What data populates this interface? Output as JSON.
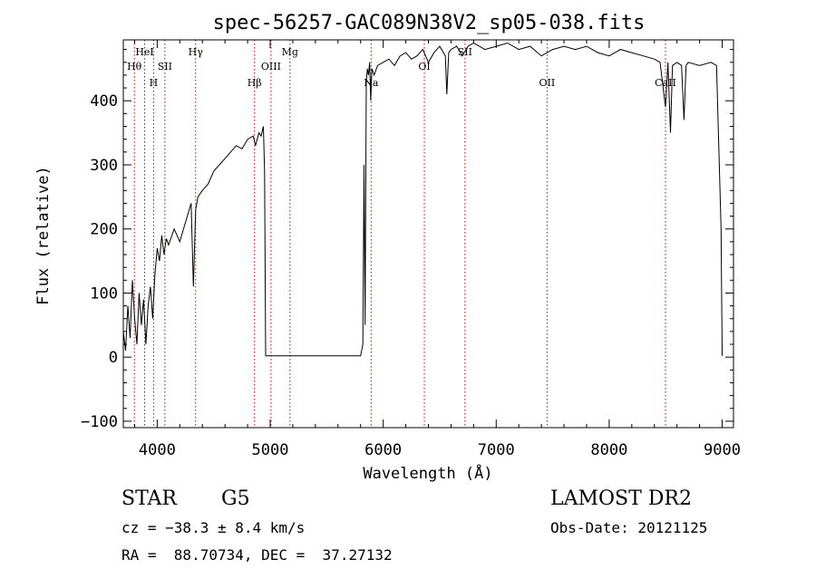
{
  "chart_data": {
    "type": "line",
    "title": "spec-56257-GAC089N38V2_sp05-038.fits",
    "xlabel": "Wavelength (Å)",
    "ylabel": "Flux (relative)",
    "xlim": [
      3700,
      9100
    ],
    "ylim": [
      -110,
      495
    ],
    "xticks": [
      4000,
      5000,
      6000,
      7000,
      8000,
      9000
    ],
    "xtick_labels": [
      "4000",
      "5000",
      "6000",
      "7000",
      "8000",
      "9000"
    ],
    "yticks": [
      -100,
      0,
      100,
      200,
      300,
      400
    ],
    "ytick_labels": [
      "−100",
      "0",
      "100",
      "200",
      "300",
      "400"
    ],
    "grid": false,
    "colors": {
      "line": "#000000",
      "marker": "#cc0000"
    },
    "series": [
      {
        "x": [
          3700,
          3720,
          3740,
          3760,
          3780,
          3800,
          3820,
          3840,
          3860,
          3880,
          3900,
          3920,
          3940,
          3960,
          3980,
          4000,
          4020,
          4040,
          4060,
          4080,
          4100,
          4150,
          4200,
          4250,
          4300,
          4320,
          4340,
          4360,
          4400,
          4450,
          4500,
          4550,
          4600,
          4650,
          4700,
          4750,
          4800,
          4850,
          4870,
          4900,
          4920,
          4940,
          4950,
          4960,
          4980,
          5000,
          5400,
          5800,
          5820,
          5830,
          5840,
          5850,
          5860,
          5870,
          5880,
          5890,
          5900,
          5920,
          5950,
          6000,
          6050,
          6100,
          6150,
          6200,
          6250,
          6300,
          6350,
          6400,
          6450,
          6500,
          6550,
          6563,
          6580,
          6600,
          6650,
          6700,
          6750,
          6800,
          6900,
          7000,
          7100,
          7200,
          7300,
          7400,
          7500,
          7600,
          7700,
          7800,
          7900,
          8000,
          8100,
          8200,
          8300,
          8400,
          8450,
          8498,
          8520,
          8542,
          8560,
          8600,
          8640,
          8662,
          8680,
          8700,
          8800,
          8900,
          8950,
          8990,
          9000
        ],
        "y": [
          40,
          10,
          80,
          30,
          120,
          60,
          20,
          100,
          50,
          90,
          20,
          80,
          110,
          60,
          130,
          170,
          150,
          190,
          160,
          185,
          175,
          200,
          180,
          210,
          240,
          110,
          230,
          250,
          260,
          270,
          290,
          300,
          310,
          320,
          330,
          325,
          340,
          345,
          330,
          350,
          345,
          360,
          290,
          2,
          2,
          2,
          2,
          2,
          20,
          300,
          50,
          430,
          450,
          440,
          460,
          400,
          450,
          440,
          455,
          460,
          465,
          455,
          470,
          475,
          465,
          470,
          480,
          460,
          475,
          485,
          470,
          410,
          475,
          480,
          485,
          470,
          485,
          490,
          480,
          485,
          490,
          480,
          485,
          470,
          480,
          485,
          480,
          485,
          475,
          470,
          480,
          475,
          470,
          465,
          460,
          390,
          460,
          350,
          455,
          460,
          455,
          370,
          455,
          460,
          455,
          460,
          455,
          200,
          2
        ]
      }
    ],
    "line_markers": [
      {
        "label": "Hθ",
        "x": 3798,
        "row": 1
      },
      {
        "label": "HeI",
        "x": 3889,
        "row": 0
      },
      {
        "label": "H",
        "x": 3968,
        "row": 2
      },
      {
        "label": "SII",
        "x": 4068,
        "row": 1
      },
      {
        "label": "Hγ",
        "x": 4340,
        "row": 0
      },
      {
        "label": "Hβ",
        "x": 4861,
        "row": 2
      },
      {
        "label": "OIII",
        "x": 5007,
        "row": 1
      },
      {
        "label": "Mg",
        "x": 5175,
        "row": 0
      },
      {
        "label": "Na",
        "x": 5893,
        "row": 2
      },
      {
        "label": "OI",
        "x": 6364,
        "row": 1
      },
      {
        "label": "SII",
        "x": 6724,
        "row": 0
      },
      {
        "label": "OII",
        "x": 7450,
        "row": 2
      },
      {
        "label": "CaII",
        "x": 8498,
        "row": 2
      }
    ]
  },
  "info": {
    "object_class": "STAR",
    "subclass": "G5",
    "survey": "LAMOST DR2",
    "redshift": "cz = −38.3 ± 8.4 km/s",
    "obs_date": "Obs-Date: 20121125",
    "coords": "RA =  88.70734, DEC =  37.27132"
  }
}
